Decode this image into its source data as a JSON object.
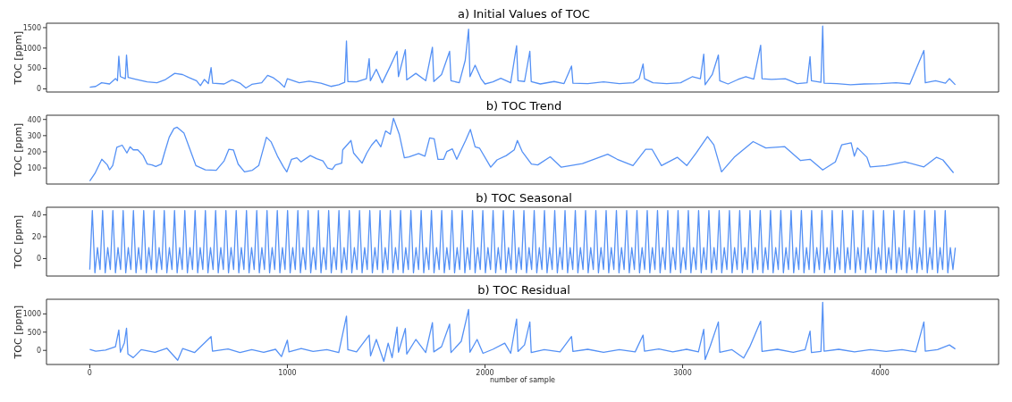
{
  "chart_data": [
    {
      "type": "line",
      "title": "a) Initial Values of TOC",
      "ylabel": "TOC [ppm]",
      "xlim": [
        -219,
        4599
      ],
      "xticks": [
        0,
        1000,
        2000,
        3000,
        4000
      ],
      "ylim": [
        -77,
        1608
      ],
      "yticks": [
        0,
        500,
        1000,
        1500
      ],
      "tick_labels": "y",
      "series": [
        {
          "color": "#5591f5",
          "x": [
            0,
            30,
            60,
            100,
            130,
            140,
            147,
            155,
            180,
            186,
            194,
            230,
            290,
            340,
            380,
            430,
            470,
            500,
            540,
            560,
            580,
            600,
            614,
            622,
            680,
            720,
            760,
            790,
            820,
            870,
            900,
            930,
            960,
            985,
            1000,
            1060,
            1110,
            1170,
            1220,
            1260,
            1290,
            1299,
            1306,
            1350,
            1400,
            1414,
            1420,
            1450,
            1480,
            1520,
            1555,
            1562,
            1597,
            1604,
            1650,
            1700,
            1734,
            1741,
            1780,
            1821,
            1828,
            1870,
            1900,
            1917,
            1924,
            1950,
            1980,
            2000,
            2040,
            2080,
            2130,
            2160,
            2167,
            2200,
            2227,
            2234,
            2280,
            2350,
            2400,
            2438,
            2445,
            2520,
            2600,
            2680,
            2750,
            2780,
            2800,
            2807,
            2850,
            2920,
            2990,
            3050,
            3090,
            3107,
            3114,
            3150,
            3181,
            3188,
            3230,
            3280,
            3320,
            3360,
            3395,
            3402,
            3450,
            3520,
            3580,
            3630,
            3645,
            3652,
            3700,
            3709,
            3716,
            3780,
            3850,
            3920,
            4000,
            4080,
            4150,
            4221,
            4228,
            4280,
            4330,
            4350,
            4380
          ],
          "values": [
            40,
            60,
            150,
            120,
            250,
            200,
            800,
            300,
            250,
            830,
            280,
            240,
            170,
            150,
            220,
            380,
            350,
            280,
            200,
            80,
            230,
            130,
            520,
            140,
            120,
            220,
            140,
            20,
            110,
            150,
            330,
            270,
            160,
            40,
            250,
            150,
            190,
            140,
            60,
            100,
            160,
            1170,
            180,
            170,
            250,
            740,
            200,
            480,
            150,
            550,
            920,
            300,
            960,
            220,
            380,
            200,
            1020,
            180,
            350,
            920,
            200,
            150,
            700,
            1460,
            300,
            580,
            250,
            120,
            170,
            260,
            150,
            1060,
            200,
            180,
            920,
            180,
            120,
            180,
            130,
            560,
            140,
            130,
            170,
            130,
            150,
            250,
            610,
            250,
            150,
            130,
            150,
            300,
            250,
            850,
            100,
            350,
            830,
            200,
            120,
            230,
            300,
            240,
            1070,
            250,
            230,
            250,
            130,
            150,
            790,
            200,
            160,
            1540,
            140,
            130,
            100,
            120,
            130,
            150,
            120,
            940,
            150,
            200,
            140,
            250,
            100
          ]
        }
      ]
    },
    {
      "type": "line",
      "title": "b) TOC Trend",
      "ylabel": "TOC [ppm]",
      "xlim": [
        -219,
        4599
      ],
      "xticks": [
        0,
        1000,
        2000,
        3000,
        4000
      ],
      "ylim": [
        1,
        426
      ],
      "yticks": [
        100,
        200,
        300,
        400
      ],
      "tick_labels": "y",
      "series": [
        {
          "color": "#5591f5",
          "x": [
            0,
            26,
            61,
            89,
            100,
            116,
            137,
            164,
            188,
            204,
            220,
            243,
            270,
            291,
            315,
            334,
            362,
            378,
            402,
            426,
            442,
            477,
            505,
            537,
            585,
            640,
            680,
            704,
            727,
            751,
            783,
            823,
            855,
            894,
            918,
            950,
            981,
            997,
            1021,
            1048,
            1069,
            1116,
            1148,
            1180,
            1204,
            1227,
            1243,
            1275,
            1280,
            1322,
            1335,
            1378,
            1402,
            1426,
            1450,
            1473,
            1497,
            1521,
            1537,
            1566,
            1592,
            1616,
            1664,
            1696,
            1720,
            1743,
            1762,
            1791,
            1807,
            1835,
            1857,
            1902,
            1926,
            1950,
            1973,
            2029,
            2061,
            2108,
            2148,
            2164,
            2188,
            2235,
            2267,
            2330,
            2386,
            2493,
            2621,
            2669,
            2749,
            2813,
            2845,
            2893,
            2973,
            3021,
            3069,
            3126,
            3158,
            3197,
            3261,
            3357,
            3421,
            3517,
            3597,
            3645,
            3709,
            3773,
            3805,
            3853,
            3869,
            3885,
            3933,
            3949,
            4029,
            4125,
            4221,
            4285,
            4317,
            4371
          ],
          "values": [
            20,
            66,
            154,
            119,
            89,
            115,
            228,
            241,
            193,
            231,
            212,
            212,
            177,
            124,
            119,
            109,
            124,
            193,
            290,
            344,
            352,
            315,
            222,
            115,
            89,
            86,
            144,
            216,
            212,
            124,
            76,
            86,
            115,
            290,
            261,
            173,
            105,
            76,
            154,
            163,
            138,
            177,
            158,
            144,
            99,
            91,
            119,
            130,
            212,
            270,
            193,
            130,
            193,
            241,
            274,
            231,
            329,
            309,
            407,
            309,
            163,
            169,
            189,
            173,
            286,
            280,
            154,
            154,
            202,
            218,
            154,
            270,
            338,
            231,
            222,
            105,
            150,
            177,
            212,
            270,
            202,
            124,
            119,
            169,
            105,
            127,
            185,
            154,
            115,
            216,
            216,
            115,
            166,
            115,
            193,
            294,
            243,
            76,
            166,
            263,
            224,
            232,
            146,
            154,
            88,
            138,
            243,
            255,
            173,
            224,
            166,
            107,
            115,
            138,
            107,
            166,
            150,
            70
          ]
        }
      ]
    },
    {
      "type": "line",
      "title": "b) TOC Seasonal",
      "ylabel": "TOC [ppm]",
      "xlim": [
        -219,
        4599
      ],
      "xticks": [
        0,
        1000,
        2000,
        3000,
        4000
      ],
      "ylim": [
        -16,
        47
      ],
      "yticks": [
        0,
        20,
        40
      ],
      "tick_labels": "y",
      "series": [
        {
          "color": "#5591f5",
          "x": [
            0,
            13,
            26,
            39,
            52,
            65,
            78,
            91,
            104,
            117,
            130,
            143,
            156,
            169,
            182,
            195,
            208,
            221,
            234,
            247,
            260,
            273,
            286,
            299,
            312,
            325,
            338,
            351,
            364,
            377,
            390,
            403,
            416,
            429,
            442,
            455,
            468,
            481,
            494,
            507,
            520,
            533,
            546,
            559,
            572,
            585,
            598,
            611,
            624,
            637,
            650,
            663,
            676,
            689,
            702,
            715,
            728,
            741,
            754,
            767,
            780,
            793,
            806,
            819,
            832,
            845,
            858,
            871,
            884,
            897,
            910,
            923,
            936,
            949,
            962,
            975,
            988,
            1001,
            1014,
            1027,
            1040,
            1053,
            1066,
            1079,
            1092,
            1105,
            1118,
            1131,
            1144,
            1157,
            1170,
            1183,
            1196,
            1209,
            1222,
            1235,
            1248,
            1261,
            1274,
            1287,
            1300,
            1313,
            1326,
            1339,
            1352,
            1365,
            1378,
            1391,
            1404,
            1417,
            1430,
            1443,
            1456,
            1469,
            1482,
            1495,
            1508,
            1521,
            1534,
            1547,
            1560,
            1573,
            1586,
            1599,
            1612,
            1625,
            1638,
            1651,
            1664,
            1677,
            1690,
            1703,
            1716,
            1729,
            1742,
            1755,
            1768,
            1781,
            1794,
            1807,
            1820,
            1833,
            1846,
            1859,
            1872,
            1885,
            1898,
            1911,
            1924,
            1937,
            1950,
            1963,
            1976,
            1989,
            2002,
            2015,
            2028,
            2041,
            2054,
            2067,
            2080,
            2093,
            2106,
            2119,
            2132,
            2145,
            2158,
            2171,
            2184,
            2197,
            2210,
            2223,
            2236,
            2249,
            2262,
            2275,
            2288,
            2301,
            2314,
            2327,
            2340,
            2353,
            2366,
            2379,
            2392,
            2405,
            2418,
            2431,
            2444,
            2457,
            2470,
            2483,
            2496,
            2509,
            2522,
            2535,
            2548,
            2561,
            2574,
            2587,
            2600,
            2613,
            2626,
            2639,
            2652,
            2665,
            2678,
            2691,
            2704,
            2717,
            2730,
            2743,
            2756,
            2769,
            2782,
            2795,
            2808,
            2821,
            2834,
            2847,
            2860,
            2873,
            2886,
            2899,
            2912,
            2925,
            2938,
            2951,
            2964,
            2977,
            2990,
            3003,
            3016,
            3029,
            3042,
            3055,
            3068,
            3081,
            3094,
            3107,
            3120,
            3133,
            3146,
            3159,
            3172,
            3185,
            3198,
            3211,
            3224,
            3237,
            3250,
            3263,
            3276,
            3289,
            3302,
            3315,
            3328,
            3341,
            3354,
            3367,
            3380,
            3393,
            3406,
            3419,
            3432,
            3445,
            3458,
            3471,
            3484,
            3497,
            3510,
            3523,
            3536,
            3549,
            3562,
            3575,
            3588,
            3601,
            3614,
            3627,
            3640,
            3653,
            3666,
            3679,
            3692,
            3705,
            3718,
            3731,
            3744,
            3757,
            3770,
            3783,
            3796,
            3809,
            3822,
            3835,
            3848,
            3861,
            3874,
            3887,
            3900,
            3913,
            3926,
            3939,
            3952,
            3965,
            3978,
            3991,
            4004,
            4017,
            4030,
            4043,
            4056,
            4069,
            4082,
            4095,
            4108,
            4121,
            4134,
            4147,
            4160,
            4173,
            4186,
            4199,
            4212,
            4225,
            4238,
            4251,
            4264,
            4277,
            4290,
            4303,
            4316,
            4329,
            4342,
            4355,
            4368,
            4380
          ],
          "values": [
            -10,
            44,
            -13,
            10,
            -10,
            44,
            -13,
            10,
            -10,
            44,
            -13,
            10,
            -10,
            44,
            -13,
            10,
            -10,
            44,
            -13,
            10,
            -10,
            44,
            -13,
            10,
            -10,
            44,
            -13,
            10,
            -10,
            44,
            -13,
            10,
            -10,
            44,
            -13,
            10,
            -10,
            44,
            -13,
            10,
            -10,
            44,
            -13,
            10,
            -10,
            44,
            -13,
            10,
            -10,
            44,
            -13,
            10,
            -10,
            44,
            -13,
            10,
            -10,
            44,
            -13,
            10,
            -10,
            44,
            -13,
            10,
            -10,
            44,
            -13,
            10,
            -10,
            44,
            -13,
            10,
            -10,
            44,
            -13,
            10,
            -10,
            44,
            -13,
            10,
            -10,
            44,
            -13,
            10,
            -10,
            44,
            -13,
            10,
            -10,
            44,
            -13,
            10,
            -10,
            44,
            -13,
            10,
            -10,
            44,
            -13,
            10,
            -10,
            44,
            -13,
            10,
            -10,
            44,
            -13,
            10,
            -10,
            44,
            -13,
            10,
            -10,
            44,
            -13,
            10,
            -10,
            44,
            -13,
            10,
            -10,
            44,
            -13,
            10,
            -10,
            44,
            -13,
            10,
            -10,
            44,
            -13,
            10,
            -10,
            44,
            -13,
            10,
            -10,
            44,
            -13,
            10,
            -10,
            44,
            -13,
            10,
            -10,
            44,
            -13,
            10,
            -10,
            44,
            -13,
            10,
            -10,
            44,
            -13,
            10,
            -10,
            44,
            -13,
            10,
            -10,
            44,
            -13,
            10,
            -10,
            44,
            -13,
            10,
            -10,
            44,
            -13,
            10,
            -10,
            44,
            -13,
            10,
            -10,
            44,
            -13,
            10,
            -10,
            44,
            -13,
            10,
            -10,
            44,
            -13,
            10,
            -10,
            44,
            -13,
            10,
            -10,
            44,
            -13,
            10,
            -10,
            44,
            -13,
            10,
            -10,
            44,
            -13,
            10,
            -10,
            44,
            -13,
            10,
            -10,
            44,
            -13,
            10,
            -10,
            44,
            -13,
            10,
            -10,
            44,
            -13,
            10,
            -10,
            44,
            -13,
            10,
            -10,
            44,
            -13,
            10,
            -10,
            44,
            -13,
            10,
            -10,
            44,
            -13,
            10,
            -10,
            44,
            -13,
            10,
            -10,
            44,
            -13,
            10,
            -10,
            44,
            -13,
            10,
            -10,
            44,
            -13,
            10,
            -10,
            44,
            -13,
            10,
            -10,
            44,
            -13,
            10,
            -10,
            44,
            -13,
            10,
            -10,
            44,
            -13,
            10,
            -10,
            44,
            -13,
            10,
            -10,
            44,
            -13,
            10,
            -10,
            44,
            -13,
            10,
            -10,
            44,
            -13,
            10,
            -10,
            44,
            -13,
            10,
            -10,
            44,
            -13,
            10,
            -10,
            44,
            -13,
            10,
            -10,
            44,
            -13,
            10,
            -10,
            44,
            -13,
            10,
            -10,
            44,
            -13,
            10,
            -10,
            44,
            -13,
            10,
            -10,
            44,
            -13,
            10,
            -10,
            44,
            -13,
            10,
            -10,
            44,
            -13,
            10,
            -10,
            44,
            -13,
            10,
            -10,
            44,
            -13,
            10,
            -10,
            44,
            -13,
            10,
            -10,
            10
          ]
        }
      ]
    },
    {
      "type": "line",
      "title": "b) TOC Residual",
      "ylabel": "TOC [ppm]",
      "xlabel": "number of sample",
      "xlim": [
        -219,
        4599
      ],
      "xticks": [
        0,
        1000,
        2000,
        3000,
        4000
      ],
      "ylim": [
        -386,
        1401
      ],
      "yticks": [
        0,
        500,
        1000
      ],
      "series": [
        {
          "color": "#5591f5",
          "x": [
            0,
            30,
            80,
            130,
            147,
            155,
            175,
            186,
            193,
            220,
            260,
            330,
            390,
            445,
            470,
            530,
            614,
            621,
            700,
            760,
            820,
            880,
            940,
            970,
            1000,
            1008,
            1070,
            1130,
            1200,
            1260,
            1299,
            1306,
            1350,
            1414,
            1421,
            1450,
            1488,
            1510,
            1530,
            1555,
            1562,
            1597,
            1604,
            1650,
            1700,
            1734,
            1741,
            1780,
            1821,
            1828,
            1880,
            1917,
            1924,
            1960,
            1990,
            2040,
            2100,
            2130,
            2160,
            2167,
            2200,
            2227,
            2234,
            2300,
            2380,
            2438,
            2445,
            2520,
            2600,
            2680,
            2760,
            2800,
            2807,
            2880,
            2950,
            3020,
            3080,
            3107,
            3114,
            3140,
            3181,
            3188,
            3250,
            3309,
            3340,
            3395,
            3402,
            3480,
            3560,
            3620,
            3645,
            3652,
            3700,
            3709,
            3716,
            3790,
            3870,
            3950,
            4030,
            4110,
            4180,
            4221,
            4228,
            4290,
            4350,
            4380
          ],
          "values": [
            30,
            -20,
            10,
            100,
            560,
            -50,
            200,
            610,
            -100,
            -200,
            20,
            -50,
            60,
            -270,
            50,
            -60,
            380,
            -20,
            40,
            -60,
            20,
            -50,
            30,
            -170,
            280,
            -40,
            50,
            -30,
            20,
            -60,
            940,
            20,
            -40,
            420,
            -150,
            300,
            -300,
            200,
            -200,
            640,
            -50,
            600,
            -100,
            300,
            -60,
            760,
            -40,
            100,
            720,
            -60,
            250,
            1120,
            -50,
            300,
            -80,
            30,
            200,
            -80,
            860,
            -30,
            150,
            780,
            -60,
            20,
            -40,
            380,
            -30,
            30,
            -50,
            20,
            -40,
            420,
            -20,
            40,
            -40,
            30,
            -40,
            580,
            -250,
            120,
            780,
            -50,
            20,
            -210,
            100,
            800,
            -30,
            30,
            -50,
            20,
            530,
            -60,
            -30,
            1320,
            -20,
            30,
            -40,
            20,
            -30,
            20,
            -40,
            780,
            -20,
            20,
            150,
            40
          ]
        }
      ]
    }
  ]
}
